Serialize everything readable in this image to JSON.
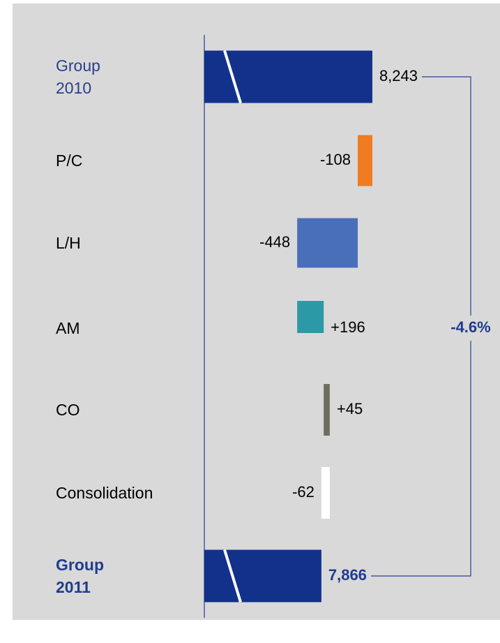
{
  "chart_data": {
    "type": "waterfall",
    "categories": [
      "Group 2010",
      "P/C",
      "L/H",
      "AM",
      "CO",
      "Consolidation",
      "Group 2011"
    ],
    "values": [
      8243,
      -108,
      -448,
      196,
      45,
      -62,
      7866
    ],
    "value_labels": [
      "8,243",
      "-108",
      "-448",
      "+196",
      "+45",
      "-62",
      "7,866"
    ],
    "colors": [
      "#11318a",
      "#f07b20",
      "#4a6fba",
      "#2b9aa6",
      "#6e6e5e",
      "#ffffff",
      "#11318a"
    ],
    "xlim": [
      7000,
      8300
    ],
    "annotation": "-4.6%"
  }
}
